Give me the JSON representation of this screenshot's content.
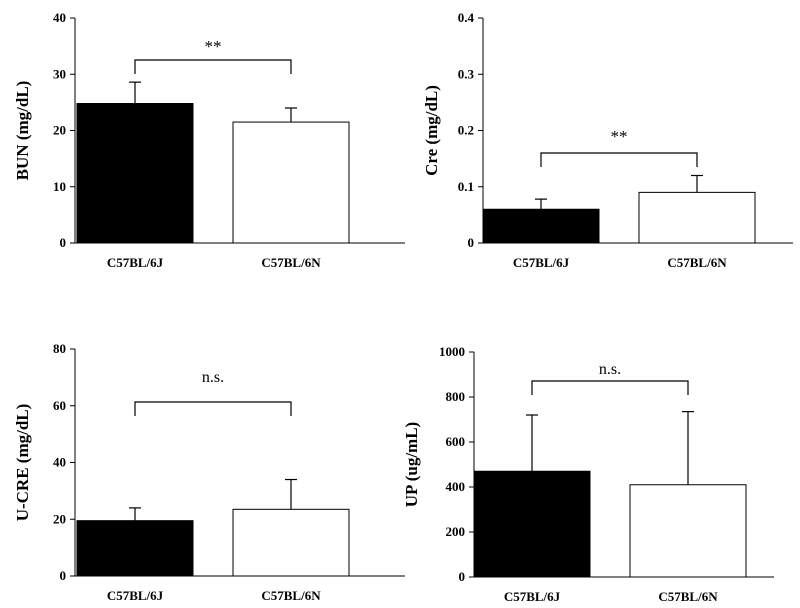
{
  "chart_data": [
    {
      "type": "bar",
      "categories": [
        "C57BL/6J",
        "C57BL/6N"
      ],
      "values": [
        24.8,
        21.5
      ],
      "errors": [
        3.8,
        2.5
      ],
      "ylabel": "BUN (mg/dL)",
      "ylim": [
        0,
        40
      ],
      "yticks": [
        "0",
        "10",
        "20",
        "30",
        "40"
      ],
      "significance": "**",
      "bar_colors": [
        "#000000",
        "#ffffff"
      ]
    },
    {
      "type": "bar",
      "categories": [
        "C57BL/6J",
        "C57BL/6N"
      ],
      "values": [
        0.06,
        0.09
      ],
      "errors": [
        0.018,
        0.03
      ],
      "ylabel": "Cre (mg/dL)",
      "ylim": [
        0,
        0.4
      ],
      "yticks": [
        "0",
        "0.1",
        "0.2",
        "0.3",
        "0.4"
      ],
      "significance": "**",
      "bar_colors": [
        "#000000",
        "#ffffff"
      ]
    },
    {
      "type": "bar",
      "categories": [
        "C57BL/6J",
        "C57BL/6N"
      ],
      "values": [
        19.5,
        23.5
      ],
      "errors": [
        4.5,
        10.5
      ],
      "ylabel": "U-CRE (mg/dL)",
      "ylim": [
        0,
        80
      ],
      "yticks": [
        "0",
        "20",
        "40",
        "60",
        "80"
      ],
      "significance": "n.s.",
      "bar_colors": [
        "#000000",
        "#ffffff"
      ]
    },
    {
      "type": "bar",
      "categories": [
        "C57BL/6J",
        "C57BL/6N"
      ],
      "values": [
        470,
        410
      ],
      "errors": [
        250,
        325
      ],
      "ylabel": "UP (ug/mL)",
      "ylim": [
        0,
        1000
      ],
      "yticks": [
        "0",
        "200",
        "400",
        "600",
        "800",
        "1000"
      ],
      "significance": "n.s.",
      "bar_colors": [
        "#000000",
        "#ffffff"
      ]
    }
  ]
}
